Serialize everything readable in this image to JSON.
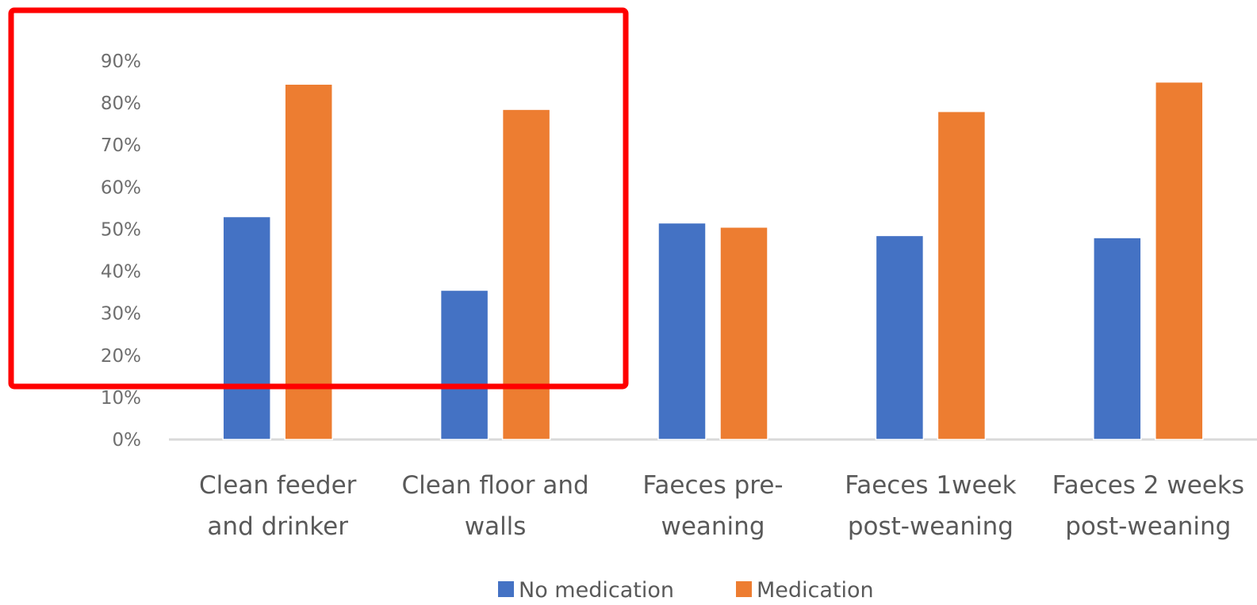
{
  "chart_data": {
    "type": "bar",
    "title": "",
    "xlabel": "",
    "ylabel": "",
    "categories": [
      [
        "Clean feeder",
        "and drinker"
      ],
      [
        "Clean floor and",
        "walls"
      ],
      [
        "Faeces pre-",
        "weaning"
      ],
      [
        "Faeces 1week",
        "post-weaning"
      ],
      [
        "Faeces 2 weeks",
        "post-weaning"
      ]
    ],
    "series": [
      {
        "name": "No medication",
        "color": "#4472c4",
        "values": [
          53,
          35.5,
          51.5,
          48.5,
          48
        ]
      },
      {
        "name": "Medication",
        "color": "#ed7d31",
        "values": [
          84.5,
          78.5,
          50.5,
          78,
          85
        ]
      }
    ],
    "ylim": [
      0,
      90
    ],
    "yticks": [
      "0%",
      "10%",
      "20%",
      "30%",
      "40%",
      "50%",
      "60%",
      "70%",
      "80%",
      "90%"
    ],
    "grid": false,
    "legend_position": "bottom"
  },
  "annotation": {
    "type": "highlight-box",
    "color": "#ff0000"
  }
}
